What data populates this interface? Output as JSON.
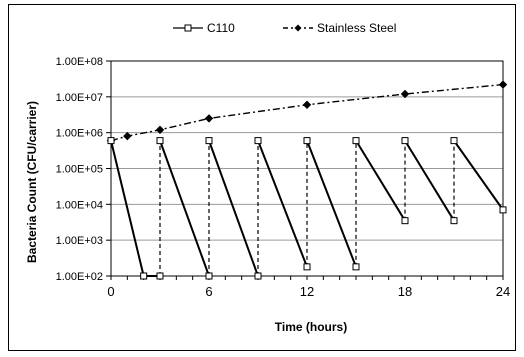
{
  "chart_data": {
    "type": "line",
    "title": "",
    "xlabel": "Time (hours)",
    "ylabel": "Bacteria Count (CFU/carrier)",
    "xlim": [
      0,
      24
    ],
    "ylim": [
      100,
      100000000
    ],
    "yscale": "log",
    "x_ticks": [
      "0",
      "6",
      "12",
      "18",
      "24"
    ],
    "x_tick_values": [
      0,
      6,
      12,
      18,
      24
    ],
    "y_ticks": [
      "1.00E+02",
      "1.00E+03",
      "1.00E+04",
      "1.00E+05",
      "1.00E+06",
      "1.00E+07",
      "1.00E+08"
    ],
    "y_tick_values": [
      100,
      1000,
      10000,
      100000,
      1000000,
      10000000,
      100000000
    ],
    "grid": "horizontal",
    "legend_position": "top",
    "series": [
      {
        "name": "C110",
        "style": "solid line, open square markers; dashed vertical re-inoculation lines",
        "color": "#000000",
        "points": [
          {
            "x": 0,
            "y": 600000
          },
          {
            "x": 2,
            "y": 100
          },
          {
            "x": 3,
            "y": 100
          },
          {
            "x": 3,
            "y": 600000
          },
          {
            "x": 6,
            "y": 100
          },
          {
            "x": 6,
            "y": 600000
          },
          {
            "x": 9,
            "y": 100
          },
          {
            "x": 9,
            "y": 600000
          },
          {
            "x": 12,
            "y": 180
          },
          {
            "x": 12,
            "y": 600000
          },
          {
            "x": 15,
            "y": 180
          },
          {
            "x": 15,
            "y": 600000
          },
          {
            "x": 18,
            "y": 3500
          },
          {
            "x": 18,
            "y": 600000
          },
          {
            "x": 21,
            "y": 3500
          },
          {
            "x": 21,
            "y": 600000
          },
          {
            "x": 24,
            "y": 7000
          }
        ]
      },
      {
        "name": "Stainless Steel",
        "style": "dash-dot line, filled diamond markers",
        "color": "#000000",
        "points": [
          {
            "x": 0,
            "y": 600000
          },
          {
            "x": 1,
            "y": 800000
          },
          {
            "x": 3,
            "y": 1200000
          },
          {
            "x": 6,
            "y": 2500000
          },
          {
            "x": 12,
            "y": 6000000
          },
          {
            "x": 18,
            "y": 12000000
          },
          {
            "x": 24,
            "y": 22000000
          }
        ]
      }
    ]
  }
}
